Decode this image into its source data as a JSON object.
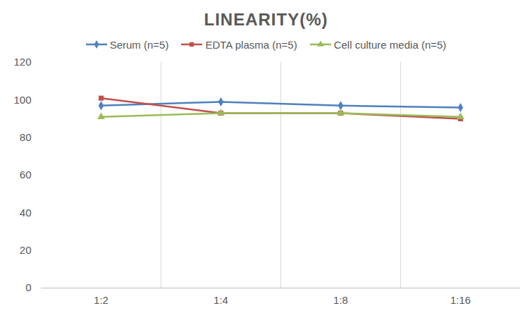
{
  "chart_data": {
    "type": "line",
    "title": "LINEARITY(%)",
    "categories": [
      "1:2",
      "1:4",
      "1:8",
      "1:16"
    ],
    "series": [
      {
        "name": "Serum (n=5)",
        "color": "#4f81bd",
        "marker": "diamond",
        "values": [
          97,
          99,
          97,
          96
        ]
      },
      {
        "name": "EDTA plasma (n=5)",
        "color": "#c0504d",
        "marker": "square",
        "values": [
          101,
          93,
          93,
          90
        ]
      },
      {
        "name": "Cell culture media (n=5)",
        "color": "#9bbb59",
        "marker": "triangle",
        "values": [
          91,
          93,
          93,
          91
        ]
      }
    ],
    "ylim": [
      0,
      120
    ],
    "yticks": [
      0,
      20,
      40,
      60,
      80,
      100,
      120
    ],
    "grid": true,
    "legend": "top"
  }
}
